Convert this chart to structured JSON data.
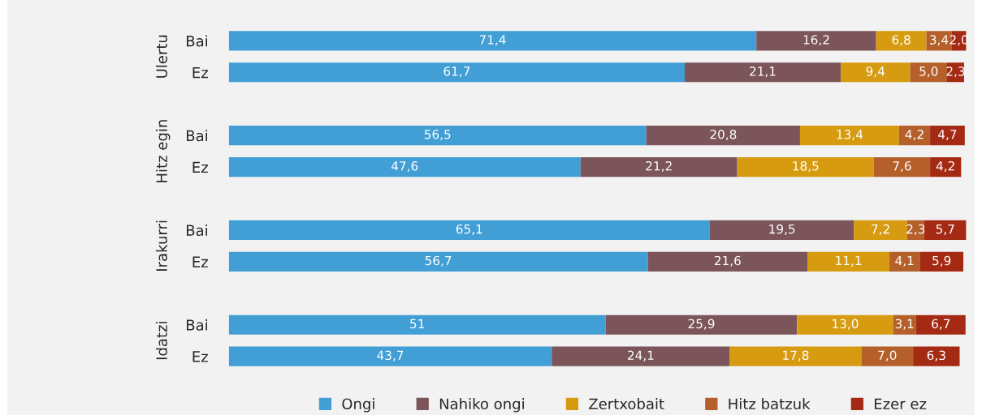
{
  "chart_data": {
    "type": "bar",
    "orientation": "horizontal",
    "stacked": true,
    "data_labels": true,
    "legend": "bottom",
    "grid": false,
    "categories": [
      "Bai",
      "Ez",
      "Bai",
      "Ez",
      "Bai",
      "Ez",
      "Bai",
      "Ez"
    ],
    "annotations": [
      "Ulertu",
      "Hitz egin",
      "Irakurri",
      "Idatzi"
    ],
    "series": [
      {
        "name": "Ongi",
        "color": "#419fd6",
        "values": [
          71.4,
          61.7,
          56.5,
          47.6,
          65.1,
          56.7,
          51,
          43.7
        ],
        "value_labels": [
          "71,4",
          "61,7",
          "56,5",
          "47,6",
          "65,1",
          "56,7",
          "51",
          "43,7"
        ]
      },
      {
        "name": "Nahiko ongi",
        "color": "#7b555a",
        "values": [
          16.2,
          21.1,
          20.8,
          21.2,
          19.5,
          21.6,
          25.9,
          24.1
        ],
        "value_labels": [
          "16,2",
          "21,1",
          "20,8",
          "21,2",
          "19,5",
          "21,6",
          "25,9",
          "24,1"
        ]
      },
      {
        "name": "Zertxobait",
        "color": "#d69b10",
        "values": [
          6.8,
          9.4,
          13.4,
          18.5,
          7.2,
          11.1,
          13.0,
          17.8
        ],
        "value_labels": [
          "6,8",
          "9,4",
          "13,4",
          "18,5",
          "7,2",
          "11,1",
          "13,0",
          "17,8"
        ]
      },
      {
        "name": "Hitz batzuk",
        "color": "#b5602a",
        "values": [
          3.4,
          5.0,
          4.2,
          7.6,
          2.3,
          4.1,
          3.1,
          7.0
        ],
        "value_labels": [
          "3,4",
          "5,0",
          "4,2",
          "7,6",
          "2,3",
          "4,1",
          "3,1",
          "7,0"
        ]
      },
      {
        "name": "Ezer ez",
        "color": "#a52a14",
        "values": [
          2.0,
          2.3,
          4.7,
          4.2,
          5.7,
          5.9,
          6.7,
          6.3
        ],
        "value_labels": [
          "2,0",
          "2,3",
          "4,7",
          "4,2",
          "5,7",
          "5,9",
          "6,7",
          "6,3"
        ]
      }
    ]
  }
}
